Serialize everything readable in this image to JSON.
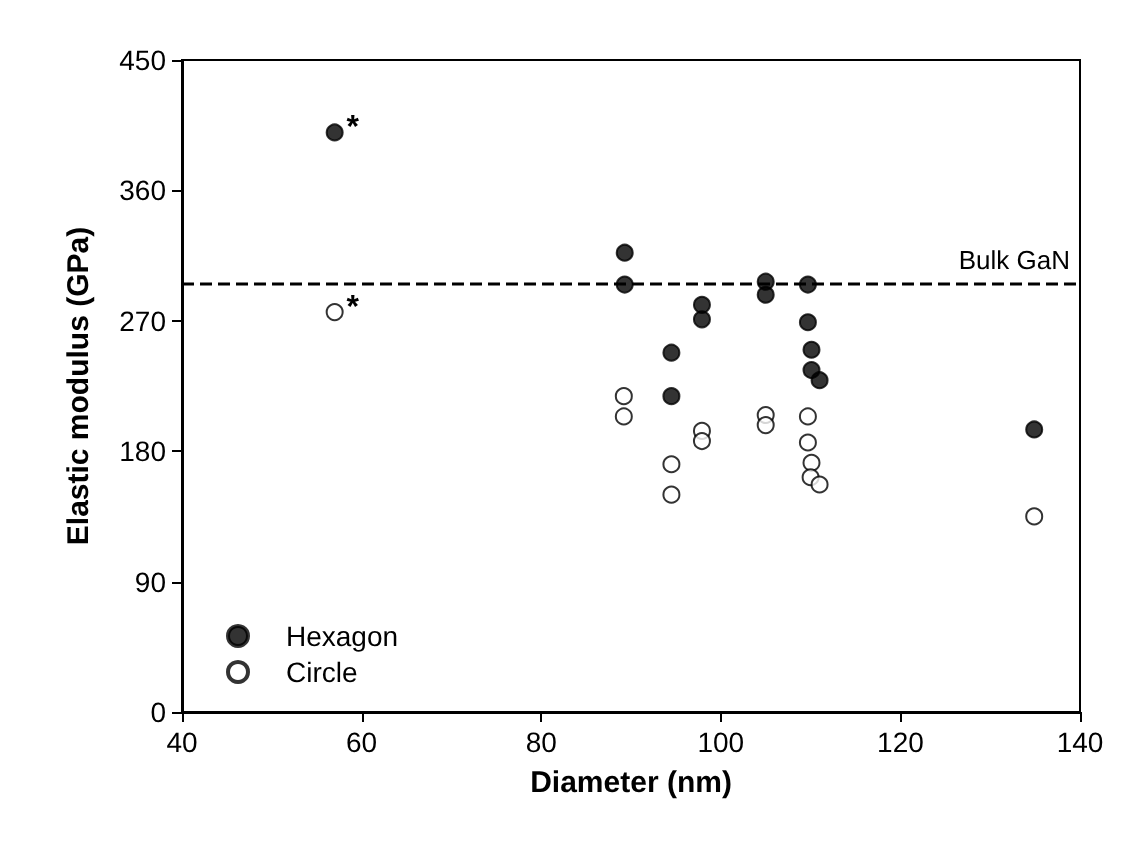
{
  "chart_data": {
    "type": "scatter",
    "xlabel": "Diameter (nm)",
    "ylabel": "Elastic modulus (GPa)",
    "xlim": [
      40,
      140
    ],
    "xticks": [
      40,
      60,
      80,
      100,
      120,
      140
    ],
    "ylim": [
      0,
      450
    ],
    "yticks": [
      0,
      90,
      180,
      270,
      360,
      450
    ],
    "grid": false,
    "legend": "bottom left",
    "marker": "circle",
    "series": [
      {
        "name": "Hexagon",
        "color": "#000000",
        "x": [
          57,
          89.3,
          89.3,
          97.9,
          97.9,
          94.5,
          94.5,
          105,
          105,
          109.7,
          109.7,
          110.1,
          110.1,
          111,
          134.9
        ],
        "values": [
          400,
          317,
          295,
          281,
          271,
          248,
          218,
          297,
          288,
          295,
          269,
          250,
          236,
          229,
          195
        ]
      },
      {
        "name": "Circle",
        "color": "#ffffff",
        "x": [
          57,
          89.2,
          89.2,
          97.9,
          97.9,
          94.5,
          94.5,
          105,
          105,
          109.7,
          109.7,
          110.1,
          110,
          111,
          134.9
        ],
        "values": [
          276,
          218,
          204,
          194,
          187,
          171,
          150,
          205,
          198,
          204,
          186,
          172,
          162,
          157,
          135
        ]
      }
    ],
    "ref_lines": [
      {
        "axis": "y",
        "value": 296,
        "label": "Bulk GaN",
        "line_style": "dashed",
        "color": "#000000"
      }
    ],
    "annotations": [
      {
        "text": "*",
        "x": 57,
        "y": 400
      },
      {
        "text": "*",
        "x": 57,
        "y": 276
      }
    ]
  }
}
